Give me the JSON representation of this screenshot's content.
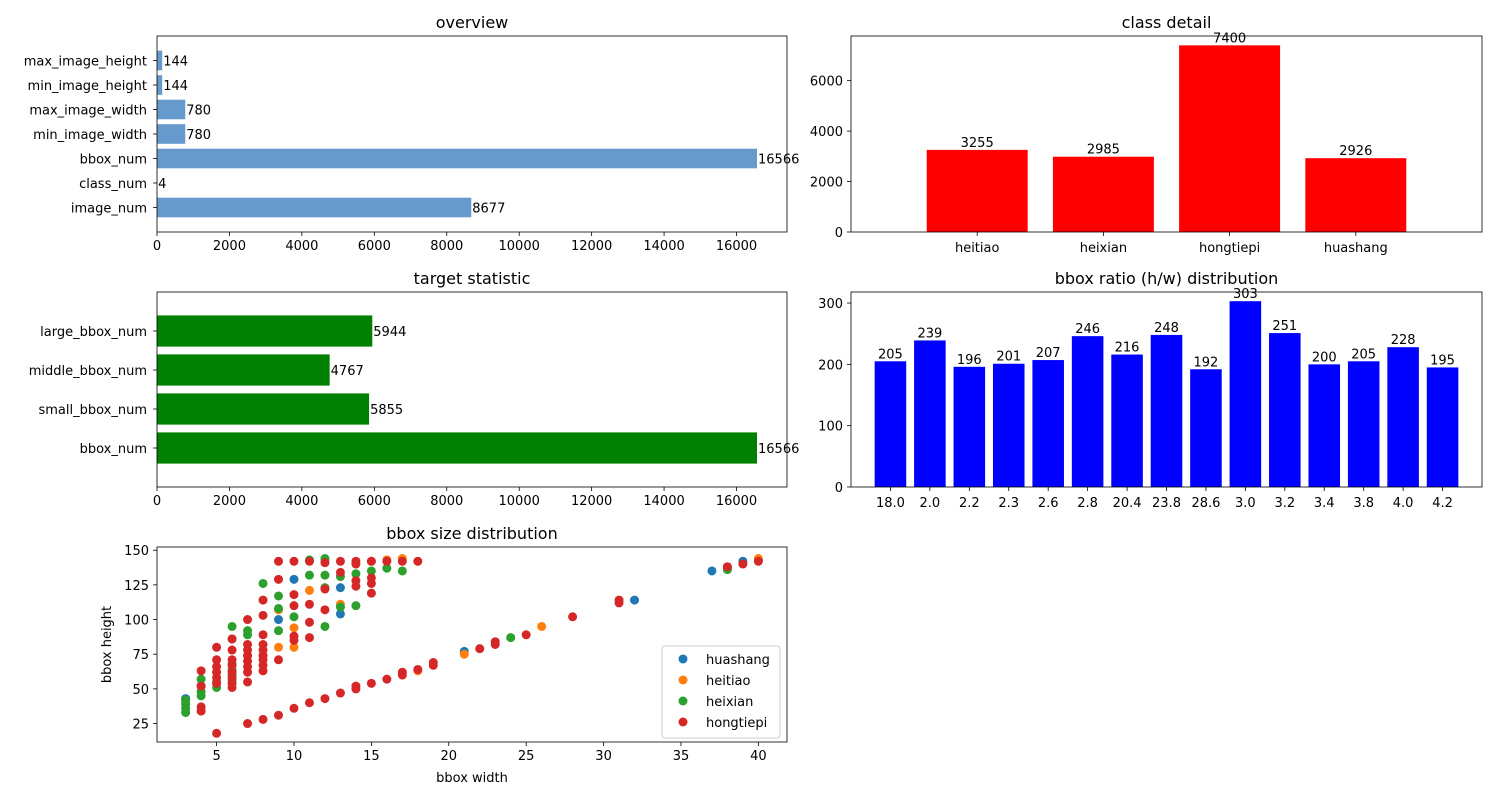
{
  "chart_data": [
    {
      "id": "overview",
      "type": "bar",
      "orientation": "horizontal",
      "title": "overview",
      "xlabel": "",
      "ylabel": "",
      "color": "#6699cc",
      "categories": [
        "image_num",
        "class_num",
        "bbox_num",
        "min_image_width",
        "max_image_width",
        "min_image_height",
        "max_image_height"
      ],
      "values": [
        8677,
        4,
        16566,
        780,
        780,
        144,
        144
      ],
      "value_labels": [
        "8677",
        "4",
        "16566",
        "780",
        "780",
        "144",
        "144"
      ],
      "xlim": [
        0,
        17394
      ],
      "xticks": [
        0,
        2000,
        4000,
        6000,
        8000,
        10000,
        12000,
        14000,
        16000
      ],
      "xtick_labels": [
        "0",
        "2000",
        "4000",
        "6000",
        "8000",
        "10000",
        "12000",
        "14000",
        "16000"
      ],
      "grid": false
    },
    {
      "id": "class_detail",
      "type": "bar",
      "orientation": "vertical",
      "title": "class detail",
      "xlabel": "",
      "ylabel": "",
      "color": "#ff0000",
      "categories": [
        "heitiao",
        "heixian",
        "hongtiepi",
        "huashang"
      ],
      "values": [
        3255,
        2985,
        7400,
        2926
      ],
      "value_labels": [
        "3255",
        "2985",
        "7400",
        "2926"
      ],
      "ylim": [
        0,
        7770
      ],
      "yticks": [
        0,
        2000,
        4000,
        6000
      ],
      "ytick_labels": [
        "0",
        "2000",
        "4000",
        "6000"
      ],
      "grid": false
    },
    {
      "id": "target_statistic",
      "type": "bar",
      "orientation": "horizontal",
      "title": "target statistic",
      "xlabel": "",
      "ylabel": "",
      "color": "#008000",
      "categories": [
        "bbox_num",
        "small_bbox_num",
        "middle_bbox_num",
        "large_bbox_num"
      ],
      "values": [
        16566,
        5855,
        4767,
        5944
      ],
      "value_labels": [
        "16566",
        "5855",
        "4767",
        "5944"
      ],
      "xlim": [
        0,
        17394
      ],
      "xticks": [
        0,
        2000,
        4000,
        6000,
        8000,
        10000,
        12000,
        14000,
        16000
      ],
      "xtick_labels": [
        "0",
        "2000",
        "4000",
        "6000",
        "8000",
        "10000",
        "12000",
        "14000",
        "16000"
      ],
      "grid": false
    },
    {
      "id": "bbox_ratio",
      "type": "bar",
      "orientation": "vertical",
      "title": "bbox ratio (h/w) distribution",
      "xlabel": "",
      "ylabel": "",
      "color": "#0000ff",
      "categories": [
        "18.0",
        "2.0",
        "2.2",
        "2.3",
        "2.6",
        "2.8",
        "20.4",
        "23.8",
        "28.6",
        "3.0",
        "3.2",
        "3.4",
        "3.8",
        "4.0",
        "4.2"
      ],
      "values": [
        205,
        239,
        196,
        201,
        207,
        246,
        216,
        248,
        192,
        303,
        251,
        200,
        205,
        228,
        195
      ],
      "value_labels": [
        "205",
        "239",
        "196",
        "201",
        "207",
        "246",
        "216",
        "248",
        "192",
        "303",
        "251",
        "200",
        "205",
        "228",
        "195"
      ],
      "ylim": [
        0,
        318
      ],
      "yticks": [
        0,
        100,
        200,
        300
      ],
      "ytick_labels": [
        "0",
        "100",
        "200",
        "300"
      ],
      "grid": false
    },
    {
      "id": "bbox_size",
      "type": "scatter",
      "title": "bbox size distribution",
      "xlabel": "bbox width",
      "ylabel": "bbox height",
      "xlim": [
        1.15,
        41.85
      ],
      "ylim": [
        11.7,
        152.3
      ],
      "xticks": [
        5,
        10,
        15,
        20,
        25,
        30,
        35,
        40
      ],
      "xtick_labels": [
        "5",
        "10",
        "15",
        "20",
        "25",
        "30",
        "35",
        "40"
      ],
      "yticks": [
        25,
        50,
        75,
        100,
        125,
        150
      ],
      "ytick_labels": [
        "25",
        "50",
        "75",
        "100",
        "125",
        "150"
      ],
      "legend": "lower-right",
      "grid": false,
      "series": [
        {
          "name": "huashang",
          "color": "#1f77b4",
          "points": [
            [
              3,
              43
            ],
            [
              9,
              100
            ],
            [
              10,
              129
            ],
            [
              13,
              104
            ],
            [
              13,
              123
            ],
            [
              21,
              77
            ],
            [
              32,
              114
            ],
            [
              37,
              135
            ],
            [
              38,
              138
            ],
            [
              39,
              142
            ],
            [
              40,
              143
            ]
          ]
        },
        {
          "name": "heitiao",
          "color": "#ff7f0e",
          "points": [
            [
              3,
              40
            ],
            [
              9,
              80
            ],
            [
              9,
              107
            ],
            [
              10,
              80
            ],
            [
              10,
              94
            ],
            [
              11,
              121
            ],
            [
              12,
              143
            ],
            [
              13,
              111
            ],
            [
              15,
              142
            ],
            [
              16,
              143
            ],
            [
              17,
              144
            ],
            [
              18,
              63
            ],
            [
              21,
              75
            ],
            [
              26,
              95
            ],
            [
              38,
              137
            ],
            [
              40,
              144
            ]
          ]
        },
        {
          "name": "heixian",
          "color": "#2ca02c",
          "points": [
            [
              3,
              33
            ],
            [
              3,
              36
            ],
            [
              3,
              39
            ],
            [
              3,
              42
            ],
            [
              4,
              45
            ],
            [
              4,
              48
            ],
            [
              4,
              52
            ],
            [
              4,
              57
            ],
            [
              5,
              51
            ],
            [
              5,
              55
            ],
            [
              6,
              56
            ],
            [
              6,
              60
            ],
            [
              6,
              64
            ],
            [
              6,
              68
            ],
            [
              6,
              86
            ],
            [
              6,
              95
            ],
            [
              7,
              89
            ],
            [
              7,
              92
            ],
            [
              8,
              126
            ],
            [
              9,
              92
            ],
            [
              9,
              108
            ],
            [
              9,
              117
            ],
            [
              10,
              102
            ],
            [
              11,
              132
            ],
            [
              11,
              143
            ],
            [
              12,
              95
            ],
            [
              12,
              123
            ],
            [
              12,
              132
            ],
            [
              12,
              144
            ],
            [
              13,
              109
            ],
            [
              13,
              131
            ],
            [
              14,
              110
            ],
            [
              14,
              133
            ],
            [
              15,
              135
            ],
            [
              16,
              137
            ],
            [
              17,
              135
            ],
            [
              24,
              87
            ],
            [
              38,
              136
            ]
          ]
        },
        {
          "name": "hongtiepi",
          "color": "#d62728",
          "points": [
            [
              4,
              34
            ],
            [
              4,
              37
            ],
            [
              4,
              52
            ],
            [
              4,
              63
            ],
            [
              5,
              18
            ],
            [
              5,
              54
            ],
            [
              5,
              58
            ],
            [
              5,
              62
            ],
            [
              5,
              66
            ],
            [
              5,
              71
            ],
            [
              5,
              80
            ],
            [
              6,
              51
            ],
            [
              6,
              54
            ],
            [
              6,
              58
            ],
            [
              6,
              62
            ],
            [
              6,
              67
            ],
            [
              6,
              71
            ],
            [
              6,
              78
            ],
            [
              6,
              86
            ],
            [
              7,
              25
            ],
            [
              7,
              55
            ],
            [
              7,
              62
            ],
            [
              7,
              66
            ],
            [
              7,
              70
            ],
            [
              7,
              74
            ],
            [
              7,
              78
            ],
            [
              7,
              82
            ],
            [
              7,
              100
            ],
            [
              8,
              28
            ],
            [
              8,
              63
            ],
            [
              8,
              67
            ],
            [
              8,
              71
            ],
            [
              8,
              74
            ],
            [
              8,
              78
            ],
            [
              8,
              82
            ],
            [
              8,
              89
            ],
            [
              8,
              103
            ],
            [
              8,
              114
            ],
            [
              9,
              31
            ],
            [
              9,
              71
            ],
            [
              9,
              129
            ],
            [
              9,
              142
            ],
            [
              10,
              36
            ],
            [
              10,
              85
            ],
            [
              10,
              88
            ],
            [
              10,
              110
            ],
            [
              10,
              118
            ],
            [
              10,
              142
            ],
            [
              11,
              40
            ],
            [
              11,
              87
            ],
            [
              11,
              98
            ],
            [
              11,
              111
            ],
            [
              11,
              142
            ],
            [
              12,
              43
            ],
            [
              12,
              107
            ],
            [
              12,
              122
            ],
            [
              12,
              141
            ],
            [
              13,
              47
            ],
            [
              13,
              134
            ],
            [
              13,
              142
            ],
            [
              14,
              50
            ],
            [
              14,
              52
            ],
            [
              14,
              124
            ],
            [
              14,
              128
            ],
            [
              14,
              140
            ],
            [
              14,
              142
            ],
            [
              15,
              54
            ],
            [
              15,
              119
            ],
            [
              15,
              126
            ],
            [
              15,
              130
            ],
            [
              15,
              142
            ],
            [
              16,
              57
            ],
            [
              16,
              142
            ],
            [
              17,
              60
            ],
            [
              17,
              62
            ],
            [
              17,
              142
            ],
            [
              18,
              64
            ],
            [
              18,
              142
            ],
            [
              19,
              67
            ],
            [
              19,
              69
            ],
            [
              22,
              79
            ],
            [
              23,
              82
            ],
            [
              23,
              84
            ],
            [
              25,
              89
            ],
            [
              28,
              102
            ],
            [
              31,
              112
            ],
            [
              31,
              114
            ],
            [
              38,
              138
            ],
            [
              39,
              140
            ],
            [
              40,
              142
            ]
          ]
        }
      ]
    }
  ]
}
